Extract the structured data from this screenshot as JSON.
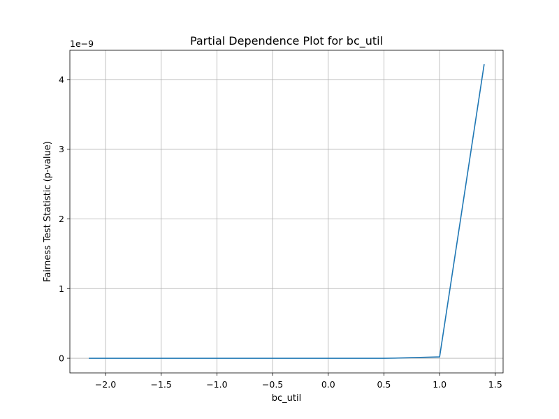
{
  "chart_data": {
    "type": "line",
    "title": "Partial Dependence Plot for bc_util",
    "xlabel": "bc_util",
    "ylabel": "Fairness Test Statistic (p-value)",
    "y_offset_label": "1e−9",
    "xlim": [
      -2.32,
      1.57
    ],
    "ylim": [
      -0.21,
      4.42
    ],
    "grid": true,
    "x_ticks": [
      {
        "value": -2.0,
        "label": "−2.0"
      },
      {
        "value": -1.5,
        "label": "−1.5"
      },
      {
        "value": -1.0,
        "label": "−1.0"
      },
      {
        "value": -0.5,
        "label": "−0.5"
      },
      {
        "value": 0.0,
        "label": "0.0"
      },
      {
        "value": 0.5,
        "label": "0.5"
      },
      {
        "value": 1.0,
        "label": "1.0"
      },
      {
        "value": 1.5,
        "label": "1.5"
      }
    ],
    "y_ticks": [
      {
        "value": 0,
        "label": "0"
      },
      {
        "value": 1,
        "label": "1"
      },
      {
        "value": 2,
        "label": "2"
      },
      {
        "value": 3,
        "label": "3"
      },
      {
        "value": 4,
        "label": "4"
      }
    ],
    "series": [
      {
        "color": "#1f77b4",
        "x": [
          -2.15,
          -1.5,
          -1.0,
          -0.5,
          0.0,
          0.5,
          0.6,
          1.0,
          1.4
        ],
        "y": [
          0,
          0,
          0,
          0,
          0,
          0,
          0.002,
          0.02,
          4.22
        ]
      }
    ]
  }
}
